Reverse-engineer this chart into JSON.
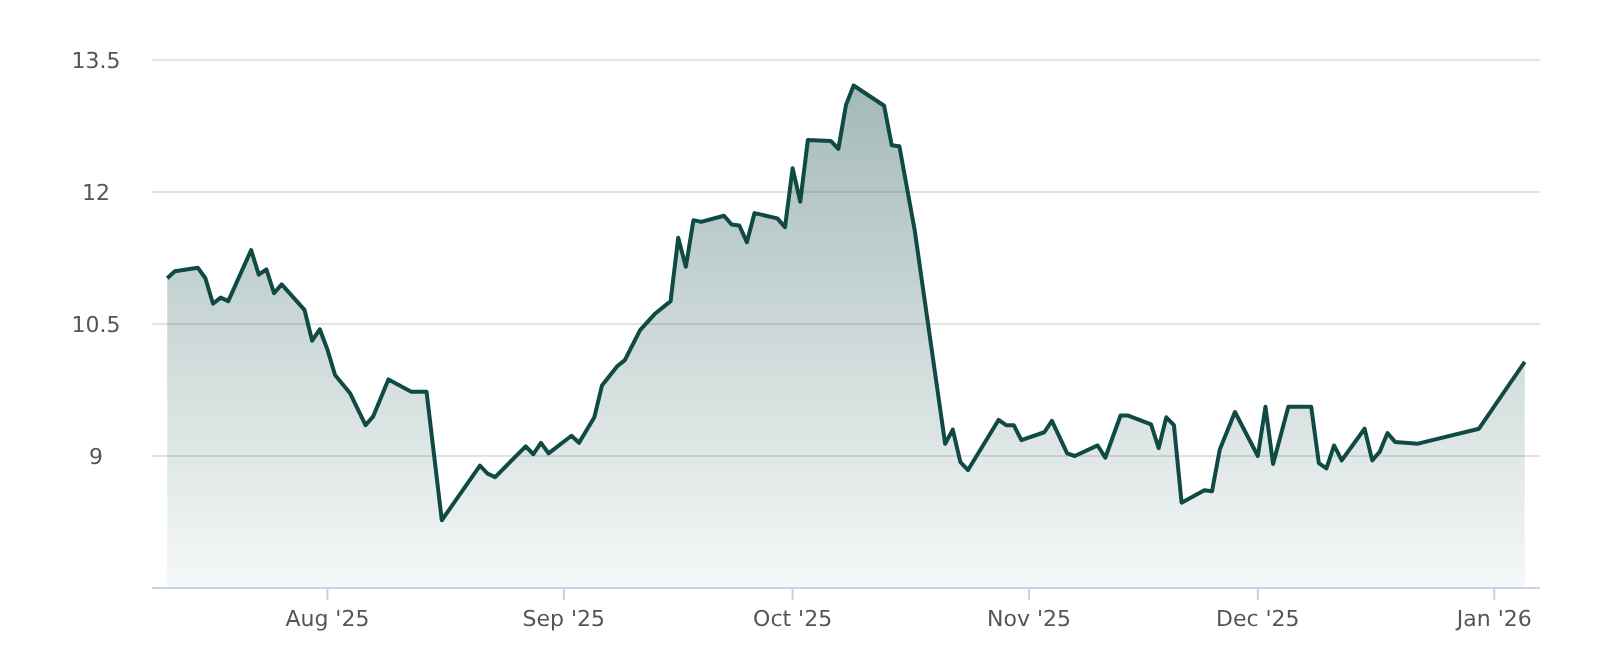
{
  "chart_data": {
    "type": "area",
    "xlim": [
      "2025-07-09",
      "2026-01-07"
    ],
    "ylim": [
      7.5,
      13.5
    ],
    "xticks": [
      {
        "value": "2025-08-01",
        "label": "Aug '25"
      },
      {
        "value": "2025-09-01",
        "label": "Sep '25"
      },
      {
        "value": "2025-10-01",
        "label": "Oct '25"
      },
      {
        "value": "2025-11-01",
        "label": "Nov '25"
      },
      {
        "value": "2025-12-01",
        "label": "Dec '25"
      },
      {
        "value": "2026-01-01",
        "label": "Jan '26"
      }
    ],
    "yticks": [
      9,
      10.5,
      12,
      13.5
    ],
    "grid": "y",
    "marker": "none",
    "line_style": "solid",
    "x": [
      "2025-07-11",
      "2025-07-12",
      "2025-07-15",
      "2025-07-16",
      "2025-07-17",
      "2025-07-18",
      "2025-07-19",
      "2025-07-22",
      "2025-07-23",
      "2025-07-24",
      "2025-07-25",
      "2025-07-26",
      "2025-07-29",
      "2025-07-30",
      "2025-07-31",
      "2025-08-01",
      "2025-08-02",
      "2025-08-04",
      "2025-08-06",
      "2025-08-07",
      "2025-08-09",
      "2025-08-12",
      "2025-08-14",
      "2025-08-16",
      "2025-08-21",
      "2025-08-22",
      "2025-08-23",
      "2025-08-27",
      "2025-08-28",
      "2025-08-29",
      "2025-08-30",
      "2025-09-02",
      "2025-09-03",
      "2025-09-05",
      "2025-09-06",
      "2025-09-08",
      "2025-09-09",
      "2025-09-11",
      "2025-09-13",
      "2025-09-15",
      "2025-09-16",
      "2025-09-17",
      "2025-09-18",
      "2025-09-19",
      "2025-09-22",
      "2025-09-23",
      "2025-09-24",
      "2025-09-25",
      "2025-09-26",
      "2025-09-29",
      "2025-09-30",
      "2025-10-01",
      "2025-10-02",
      "2025-10-03",
      "2025-10-06",
      "2025-10-07",
      "2025-10-08",
      "2025-10-09",
      "2025-10-13",
      "2025-10-14",
      "2025-10-15",
      "2025-10-17",
      "2025-10-21",
      "2025-10-22",
      "2025-10-23",
      "2025-10-24",
      "2025-10-28",
      "2025-10-29",
      "2025-10-30",
      "2025-10-31",
      "2025-11-03",
      "2025-11-04",
      "2025-11-06",
      "2025-11-07",
      "2025-11-10",
      "2025-11-11",
      "2025-11-13",
      "2025-11-14",
      "2025-11-17",
      "2025-11-18",
      "2025-11-19",
      "2025-11-20",
      "2025-11-21",
      "2025-11-24",
      "2025-11-25",
      "2025-11-26",
      "2025-11-28",
      "2025-12-01",
      "2025-12-02",
      "2025-12-03",
      "2025-12-05",
      "2025-12-08",
      "2025-12-09",
      "2025-12-10",
      "2025-12-11",
      "2025-12-12",
      "2025-12-15",
      "2025-12-16",
      "2025-12-17",
      "2025-12-18",
      "2025-12-19",
      "2025-12-22",
      "2025-12-30",
      "2026-01-05"
    ],
    "series": [
      {
        "color": "#0f4a45",
        "values": [
          11.02,
          11.1,
          11.14,
          11.02,
          10.73,
          10.8,
          10.76,
          11.34,
          11.06,
          11.12,
          10.85,
          10.95,
          10.66,
          10.31,
          10.44,
          10.21,
          9.92,
          9.71,
          9.35,
          9.45,
          9.87,
          9.73,
          9.73,
          8.27,
          8.89,
          8.8,
          8.76,
          9.11,
          9.02,
          9.15,
          9.03,
          9.23,
          9.15,
          9.44,
          9.8,
          10.02,
          10.09,
          10.43,
          10.62,
          10.76,
          11.48,
          11.15,
          11.68,
          11.66,
          11.73,
          11.63,
          11.62,
          11.43,
          11.76,
          11.7,
          11.6,
          12.27,
          11.89,
          12.59,
          12.58,
          12.49,
          12.99,
          13.21,
          12.98,
          12.53,
          12.52,
          11.57,
          9.14,
          9.3,
          8.93,
          8.84,
          9.41,
          9.35,
          9.35,
          9.18,
          9.27,
          9.4,
          9.03,
          9.0,
          9.12,
          8.98,
          9.46,
          9.46,
          9.36,
          9.09,
          9.44,
          9.35,
          8.47,
          8.61,
          8.6,
          9.07,
          9.5,
          9.0,
          9.56,
          8.91,
          9.56,
          9.56,
          8.92,
          8.86,
          9.12,
          8.95,
          9.31,
          8.95,
          9.05,
          9.26,
          9.16,
          9.14,
          9.31,
          10.07
        ]
      }
    ]
  }
}
